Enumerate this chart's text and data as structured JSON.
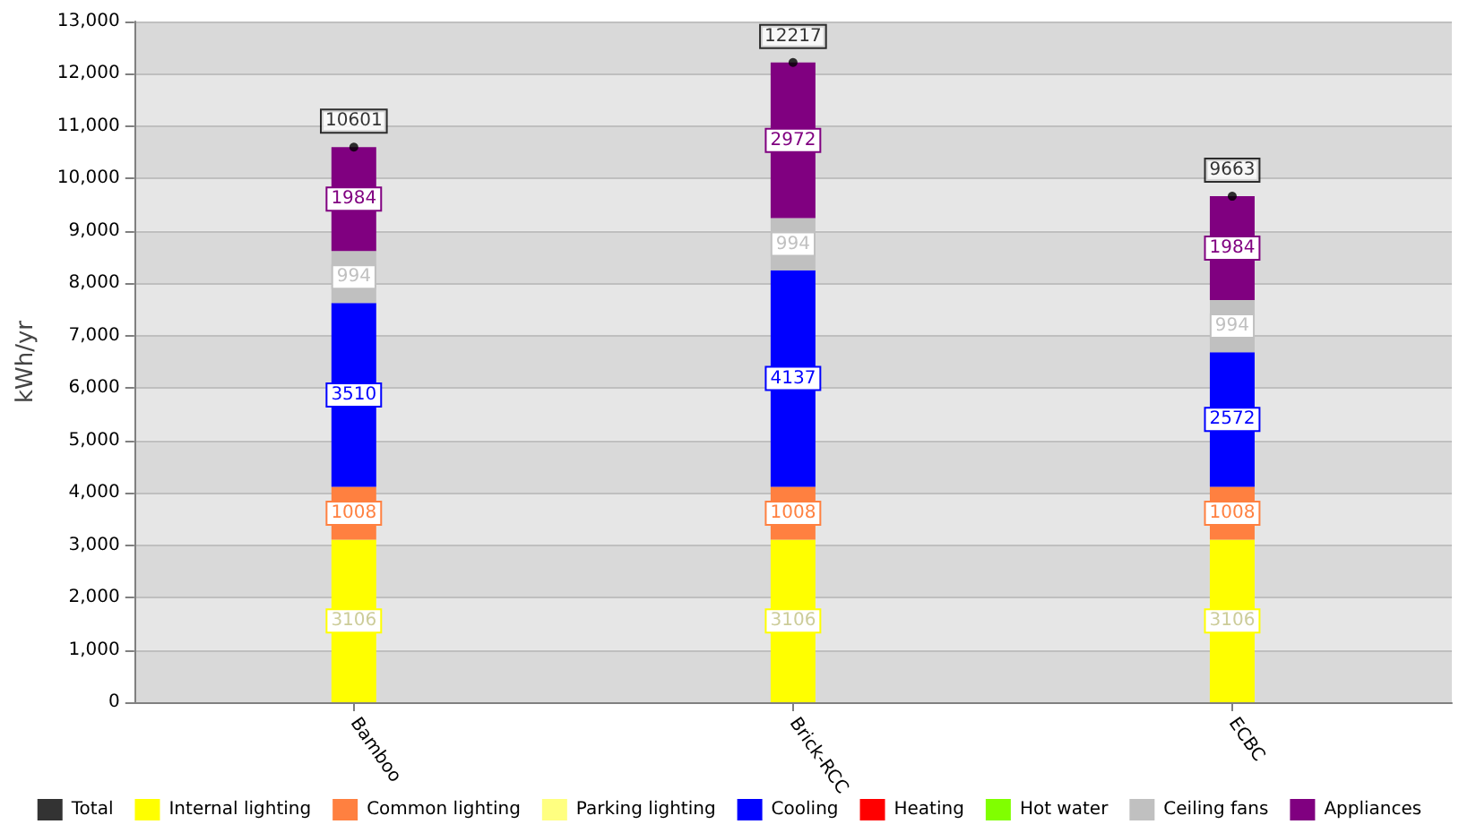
{
  "chart_data": {
    "type": "bar",
    "stacked": true,
    "ylabel": "kWh/yr",
    "categories": [
      "Bamboo",
      "Brick-RCC",
      "ECBC"
    ],
    "ylim": [
      0,
      13000
    ],
    "yticks": [
      0,
      {
        "value": 1000,
        "label": "1,000"
      },
      {
        "value": 2000,
        "label": "2,000"
      },
      {
        "value": 3000,
        "label": "3,000"
      },
      {
        "value": 4000,
        "label": "4,000"
      },
      {
        "value": 5000,
        "label": "5,000"
      },
      {
        "value": 6000,
        "label": "6,000"
      },
      {
        "value": 7000,
        "label": "7,000"
      },
      {
        "value": 8000,
        "label": "8,000"
      },
      {
        "value": 9000,
        "label": "9,000"
      },
      {
        "value": 10000,
        "label": "10,000"
      },
      {
        "value": 11000,
        "label": "11,000"
      },
      {
        "value": 12000,
        "label": "12,000"
      },
      {
        "value": 13000,
        "label": "13,000"
      }
    ],
    "grid": "y",
    "legend": "bottom",
    "series": [
      {
        "name": "Total",
        "type": "scatter",
        "color": "#000000",
        "values": [
          10601,
          12217,
          9663
        ],
        "value_labels": [
          "10601",
          "12217",
          "9663"
        ]
      },
      {
        "name": "Internal lighting",
        "color": "#ffff00",
        "values": [
          3106,
          3106,
          3106
        ],
        "value_labels": [
          "3106",
          "3106",
          "3106"
        ]
      },
      {
        "name": "Common lighting",
        "color": "#ff8040",
        "values": [
          1008,
          1008,
          1008
        ],
        "value_labels": [
          "1008",
          "1008",
          "1008"
        ]
      },
      {
        "name": "Parking lighting",
        "color": "#ffff80",
        "values": [
          null,
          null,
          null
        ]
      },
      {
        "name": "Cooling",
        "color": "#0000ff",
        "values": [
          3510,
          4137,
          2572
        ],
        "value_labels": [
          "3510",
          "4137",
          "2572"
        ]
      },
      {
        "name": "Heating",
        "color": "#ff0000",
        "values": [
          null,
          null,
          null
        ]
      },
      {
        "name": "Hot water",
        "color": "#80ff00",
        "values": [
          null,
          null,
          null
        ]
      },
      {
        "name": "Ceiling fans",
        "color": "#c0c0c0",
        "values": [
          994,
          994,
          994
        ],
        "value_labels": [
          "994",
          "994",
          "994"
        ]
      },
      {
        "name": "Appliances",
        "color": "#800080",
        "values": [
          1984,
          2972,
          1984
        ],
        "value_labels": [
          "1984",
          "2972",
          "1984"
        ]
      }
    ]
  }
}
